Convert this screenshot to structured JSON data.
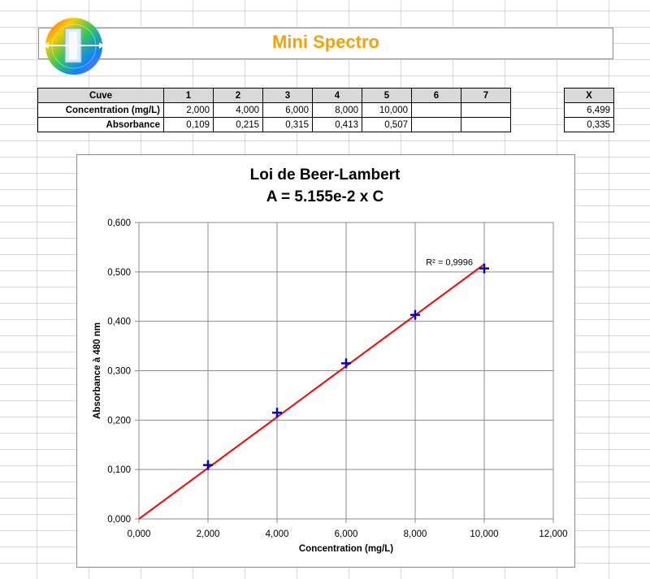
{
  "header": {
    "title": "Mini Spectro",
    "title_color": "#f5a300",
    "logo_icon": "spectrum-cuvette-logo"
  },
  "data_table": {
    "headers": [
      "Cuve",
      "1",
      "2",
      "3",
      "4",
      "5",
      "6",
      "7"
    ],
    "rows": [
      {
        "label": "Concentration (mg/L)",
        "cells": [
          "2,000",
          "4,000",
          "6,000",
          "8,000",
          "10,000",
          "",
          ""
        ]
      },
      {
        "label": "Absorbance",
        "cells": [
          "0,109",
          "0,215",
          "0,315",
          "0,413",
          "0,507",
          "",
          ""
        ]
      }
    ]
  },
  "x_table": {
    "header": "X",
    "concentration": "6,499",
    "absorbance": "0,335"
  },
  "chart_data": {
    "type": "scatter",
    "title": "Loi de Beer-Lambert",
    "subtitle": "A = 5.155e-2 x C",
    "xlabel": "Concentration (mg/L)",
    "ylabel": "Absorbance à 480 nm",
    "xlim": [
      0,
      12
    ],
    "ylim": [
      0,
      0.6
    ],
    "x_ticks": [
      "0,000",
      "2,000",
      "4,000",
      "6,000",
      "8,000",
      "10,000",
      "12,000"
    ],
    "y_ticks": [
      "0,000",
      "0,100",
      "0,200",
      "0,300",
      "0,400",
      "0,500",
      "0,600"
    ],
    "grid": true,
    "series": [
      {
        "x": [
          2,
          4,
          6,
          8,
          10
        ],
        "values": [
          0.109,
          0.215,
          0.315,
          0.413,
          0.507
        ],
        "color": "#0000cc",
        "marker": "plus"
      }
    ],
    "trendline": {
      "x": [
        0,
        10
      ],
      "y": [
        0,
        0.5155
      ],
      "color": "#ff0000",
      "annotation": "R² = 0,9996"
    }
  }
}
